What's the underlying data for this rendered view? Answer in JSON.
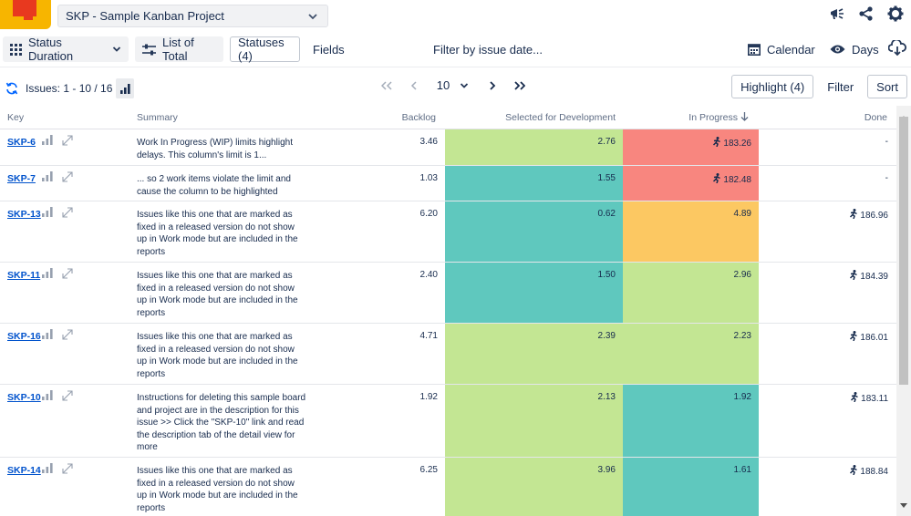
{
  "topbar": {
    "project": "SKP - Sample Kanban Project"
  },
  "toolbar": {
    "status_duration": "Status Duration",
    "list_of_total": "List of Total",
    "statuses": "Statuses (4)",
    "fields": "Fields",
    "filter_date": "Filter by issue date...",
    "calendar": "Calendar",
    "days": "Days"
  },
  "pager": {
    "issues_info": "Issues: 1 - 10 / 16",
    "page_size": "10",
    "highlight": "Highlight (4)",
    "filter": "Filter",
    "sort": "Sort"
  },
  "columns": {
    "key": "Key",
    "summary": "Summary",
    "backlog": "Backlog",
    "selected": "Selected for Development",
    "in_progress": "In Progress",
    "done": "Done"
  },
  "colors": {
    "green": "#c3e693",
    "teal": "#5fc8be",
    "red": "#f8867f",
    "orange": "#fcc862",
    "link": "#0052cc"
  },
  "rows": [
    {
      "key": "SKP-6",
      "summary": "Work In Progress (WIP) limits highlight delays. This column's limit is 1...",
      "backlog": "3.46",
      "selected": "2.76",
      "selected_color": "green",
      "in_progress": "183.26",
      "in_progress_color": "red",
      "in_progress_runner": true,
      "done": "-",
      "done_runner": false
    },
    {
      "key": "SKP-7",
      "summary": "... so 2 work items violate the limit and cause the column to be highlighted",
      "backlog": "1.03",
      "selected": "1.55",
      "selected_color": "teal",
      "in_progress": "182.48",
      "in_progress_color": "red",
      "in_progress_runner": true,
      "done": "-",
      "done_runner": false
    },
    {
      "key": "SKP-13",
      "summary": "Issues like this one that are marked as fixed in a released version do not show up in Work mode but are included in the reports",
      "backlog": "6.20",
      "selected": "0.62",
      "selected_color": "teal",
      "in_progress": "4.89",
      "in_progress_color": "orange",
      "in_progress_runner": false,
      "done": "186.96",
      "done_runner": true
    },
    {
      "key": "SKP-11",
      "summary": "Issues like this one that are marked as fixed in a released version do not show up in Work mode but are included in the reports",
      "backlog": "2.40",
      "selected": "1.50",
      "selected_color": "teal",
      "in_progress": "2.96",
      "in_progress_color": "green",
      "in_progress_runner": false,
      "done": "184.39",
      "done_runner": true
    },
    {
      "key": "SKP-16",
      "summary": "Issues like this one that are marked as fixed in a released version do not show up in Work mode but are included in the reports",
      "backlog": "4.71",
      "selected": "2.39",
      "selected_color": "green",
      "in_progress": "2.23",
      "in_progress_color": "green",
      "in_progress_runner": false,
      "done": "186.01",
      "done_runner": true
    },
    {
      "key": "SKP-10",
      "summary": "Instructions for deleting this sample board and project are in the description for this issue >> Click the \"SKP-10\" link and read the description tab of the detail view for more",
      "backlog": "1.92",
      "selected": "2.13",
      "selected_color": "green",
      "in_progress": "1.92",
      "in_progress_color": "teal",
      "in_progress_runner": false,
      "done": "183.11",
      "done_runner": true
    },
    {
      "key": "SKP-14",
      "summary": "Issues like this one that are marked as fixed in a released version do not show up in Work mode but are included in the reports",
      "backlog": "6.25",
      "selected": "3.96",
      "selected_color": "green",
      "in_progress": "1.61",
      "in_progress_color": "teal",
      "in_progress_runner": false,
      "done": "188.84",
      "done_runner": true
    }
  ]
}
